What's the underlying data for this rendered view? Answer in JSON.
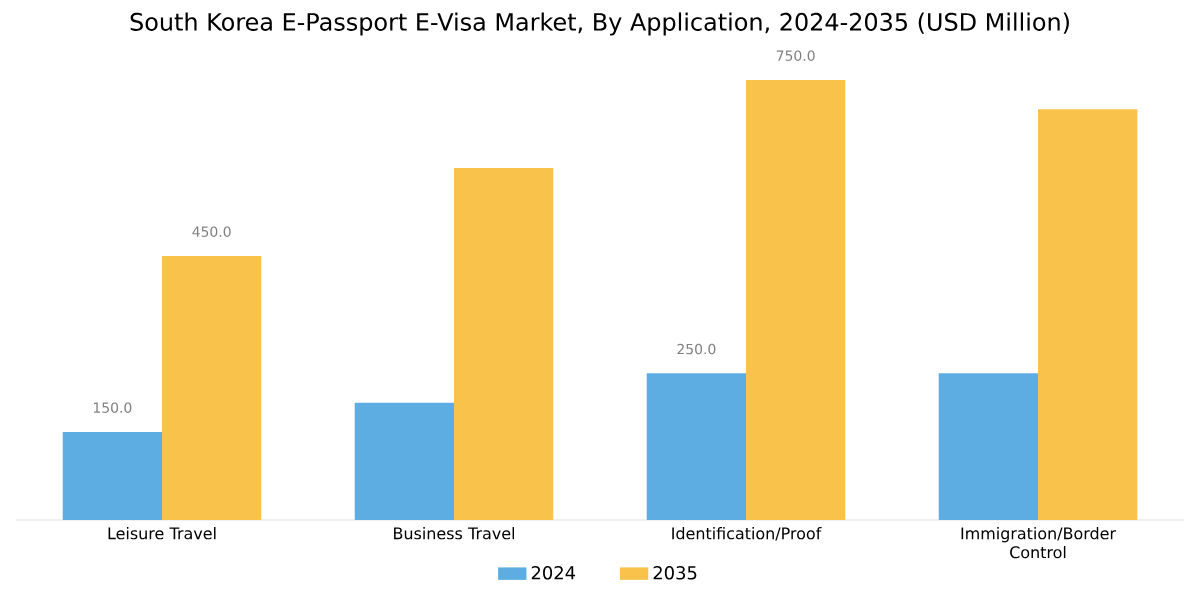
{
  "chart_data": {
    "type": "bar",
    "title": "South Korea E-Passport E-Visa Market, By Application, 2024-2035 (USD Million)",
    "categories": [
      "Leisure Travel",
      "Business Travel",
      "Identification/Proof",
      "Immigration/Border Control"
    ],
    "series": [
      {
        "name": "2024",
        "color": "#5dade2",
        "values": [
          150,
          200,
          250,
          250
        ],
        "value_labels": [
          "150.0",
          null,
          "250.0",
          null
        ]
      },
      {
        "name": "2035",
        "color": "#f9c34b",
        "values": [
          450,
          600,
          750,
          700
        ],
        "value_labels": [
          "450.0",
          null,
          "750.0",
          null
        ]
      }
    ],
    "legend": "bottom"
  }
}
